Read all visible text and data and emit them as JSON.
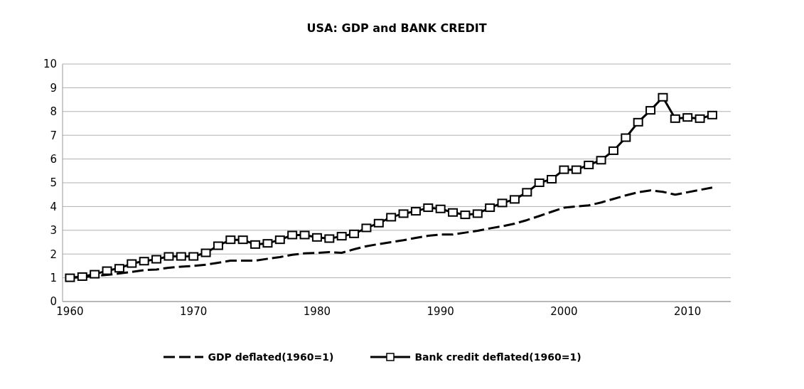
{
  "chart_data": {
    "type": "line",
    "title": "USA: GDP and BANK CREDIT",
    "x": [
      1960,
      1961,
      1962,
      1963,
      1964,
      1965,
      1966,
      1967,
      1968,
      1969,
      1970,
      1971,
      1972,
      1973,
      1974,
      1975,
      1976,
      1977,
      1978,
      1979,
      1980,
      1981,
      1982,
      1983,
      1984,
      1985,
      1986,
      1987,
      1988,
      1989,
      1990,
      1991,
      1992,
      1993,
      1994,
      1995,
      1996,
      1997,
      1998,
      1999,
      2000,
      2001,
      2002,
      2003,
      2004,
      2005,
      2006,
      2007,
      2008,
      2009,
      2010,
      2011,
      2012
    ],
    "series": [
      {
        "name": "GDP deflated(1960=1)",
        "color": "#000000",
        "line_style": "dashed",
        "marker": "none",
        "values": [
          1.0,
          1.03,
          1.08,
          1.12,
          1.18,
          1.25,
          1.32,
          1.35,
          1.42,
          1.47,
          1.5,
          1.55,
          1.63,
          1.72,
          1.72,
          1.72,
          1.8,
          1.87,
          1.97,
          2.03,
          2.05,
          2.08,
          2.05,
          2.2,
          2.33,
          2.42,
          2.5,
          2.58,
          2.68,
          2.77,
          2.82,
          2.82,
          2.9,
          2.98,
          3.08,
          3.17,
          3.28,
          3.43,
          3.6,
          3.78,
          3.95,
          4.0,
          4.05,
          4.17,
          4.32,
          4.47,
          4.6,
          4.68,
          4.62,
          4.5,
          4.6,
          4.7,
          4.8
        ]
      },
      {
        "name": "Bank credit deflated(1960=1)",
        "color": "#000000",
        "line_style": "solid",
        "marker": "square",
        "values": [
          1.0,
          1.05,
          1.15,
          1.3,
          1.4,
          1.6,
          1.7,
          1.78,
          1.9,
          1.9,
          1.9,
          2.05,
          2.35,
          2.6,
          2.6,
          2.4,
          2.45,
          2.6,
          2.8,
          2.8,
          2.7,
          2.65,
          2.75,
          2.85,
          3.1,
          3.3,
          3.55,
          3.7,
          3.8,
          3.95,
          3.9,
          3.75,
          3.65,
          3.7,
          3.95,
          4.15,
          4.3,
          4.6,
          5.0,
          5.15,
          5.55,
          5.55,
          5.75,
          5.95,
          6.35,
          6.9,
          7.55,
          8.05,
          8.6,
          7.7,
          7.75,
          7.7,
          7.85
        ]
      }
    ],
    "xlim": [
      1959.4,
      2013.5
    ],
    "xticks": [
      1960,
      1970,
      1980,
      1990,
      2000,
      2010
    ],
    "ylim": [
      0,
      10
    ],
    "yticks": [
      0,
      1,
      2,
      3,
      4,
      5,
      6,
      7,
      8,
      9,
      10
    ],
    "grid": "y",
    "legend": "bottom"
  }
}
